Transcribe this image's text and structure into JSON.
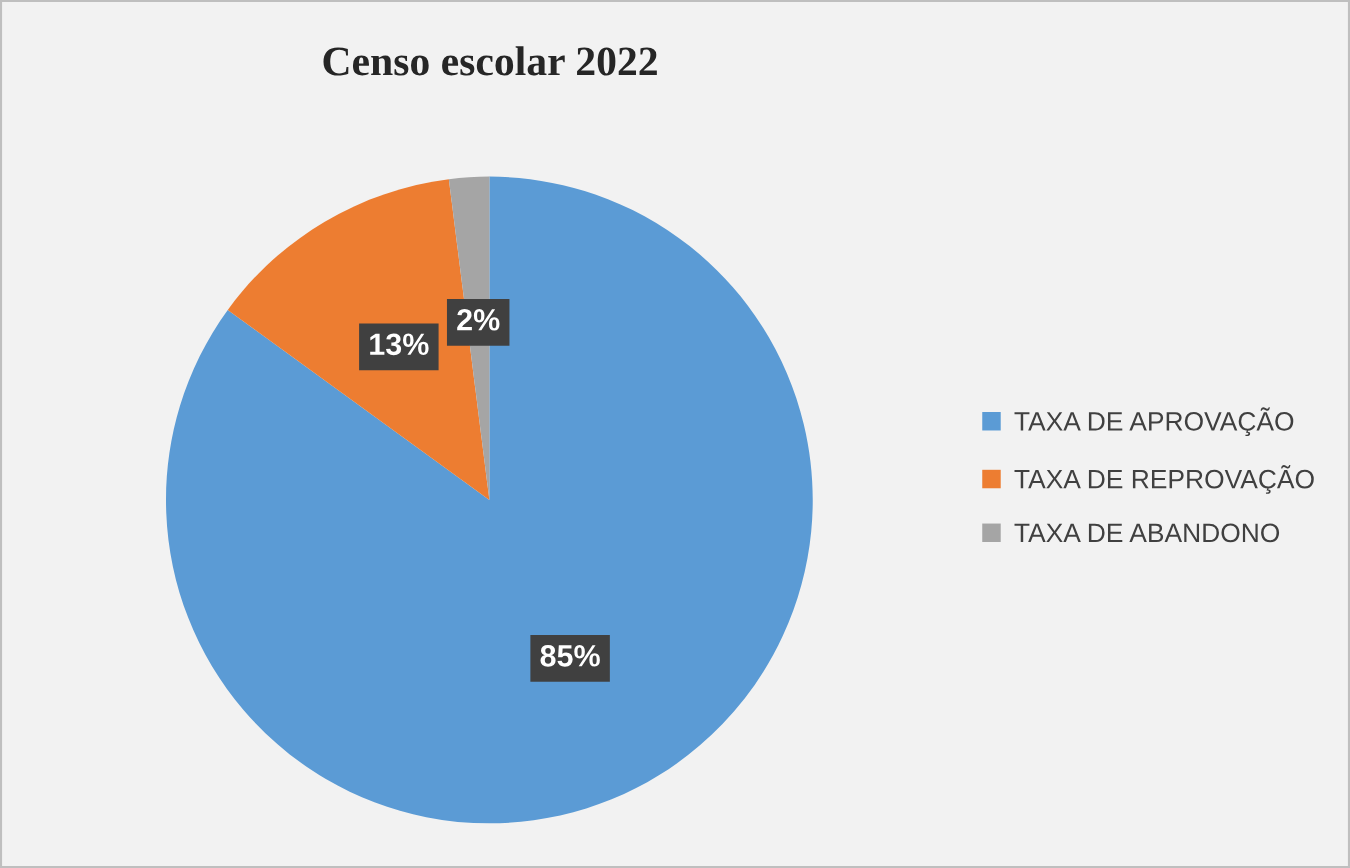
{
  "chart_data": {
    "type": "pie",
    "title": "Censo escolar 2022",
    "categories": [
      "TAXA DE APROVAÇÃO",
      "TAXA DE REPROVAÇÃO",
      "TAXA DE ABANDONO"
    ],
    "values": [
      85,
      13,
      2
    ],
    "colors": [
      "#5b9bd5",
      "#ed7d31",
      "#a5a5a5"
    ],
    "value_labels": [
      "85%",
      "13%",
      "2%"
    ],
    "legend": "right"
  }
}
